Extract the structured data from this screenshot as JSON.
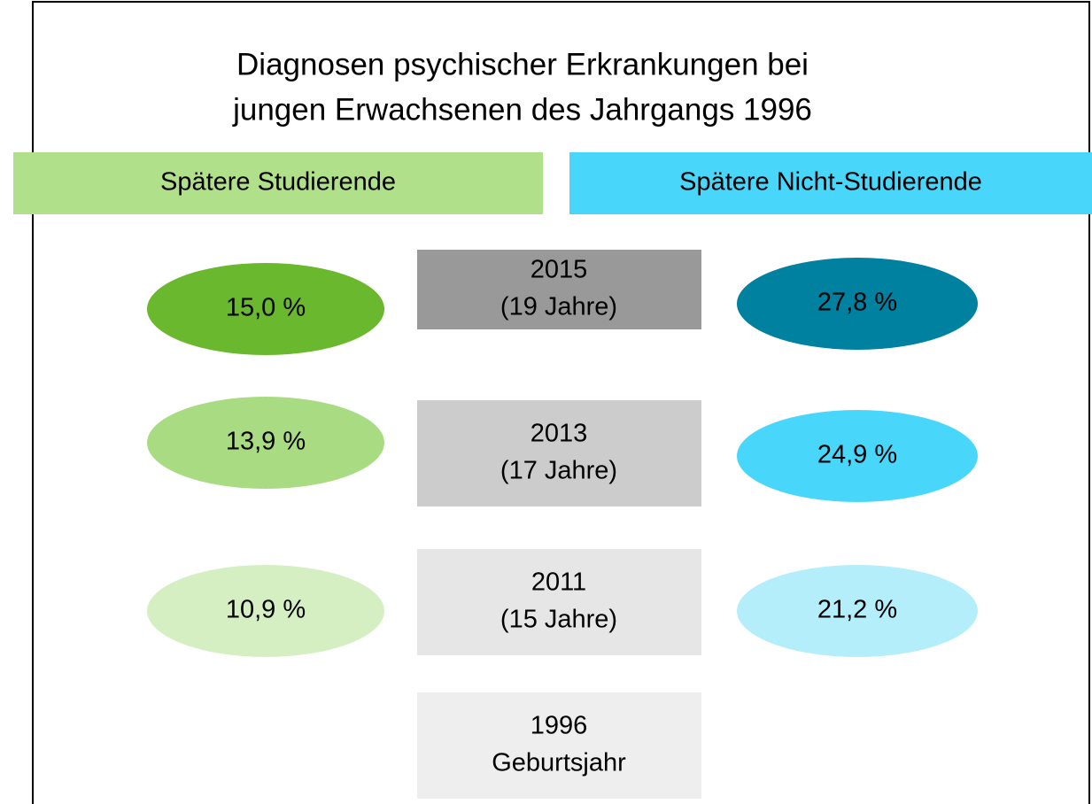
{
  "title": [
    "Diagnosen psychischer Erkrankungen bei",
    "jungen Erwachsenen des Jahrgangs 1996"
  ],
  "groups": [
    {
      "label": "Spätere Studierende"
    },
    {
      "label": "Spätere Nicht-Studierende"
    }
  ],
  "rows": [
    {
      "year": "2015",
      "age": "(19 Jahre)",
      "left": "15,0 %",
      "right": "27,8 %"
    },
    {
      "year": "2013",
      "age": "(17 Jahre)",
      "left": "13,9 %",
      "right": "24,9 %"
    },
    {
      "year": "2011",
      "age": "(15 Jahre)",
      "left": "10,9 %",
      "right": "21,2 %"
    },
    {
      "year": "1996",
      "age": "Geburtsjahr"
    }
  ]
}
